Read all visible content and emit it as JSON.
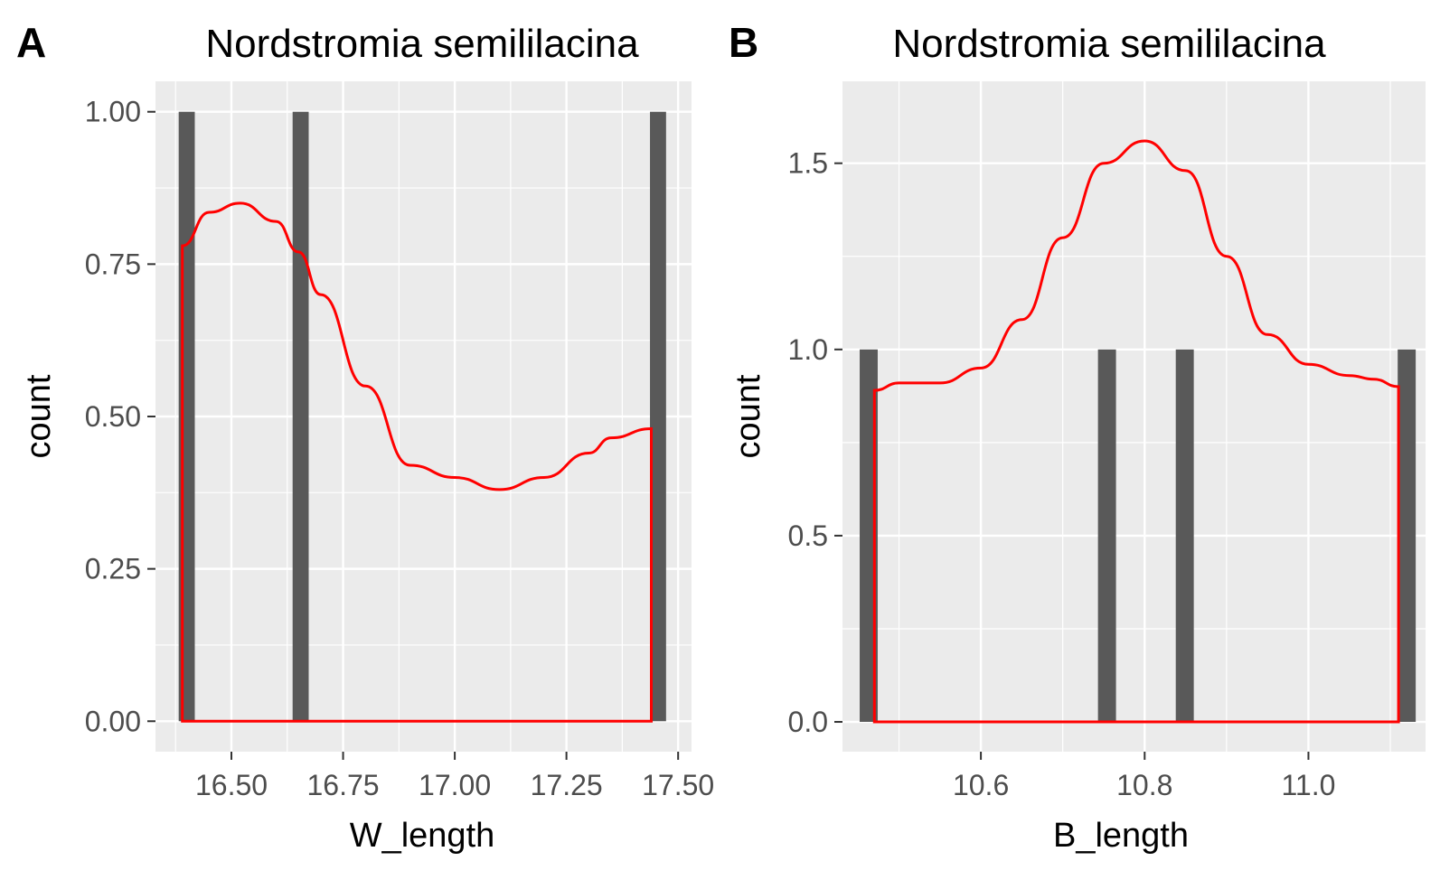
{
  "colors": {
    "panel_background": "#ebebeb",
    "grid": "#ffffff",
    "bar": "#595959",
    "density": "#ff0000",
    "tick": "#333333",
    "tick_label": "#4d4d4d"
  },
  "chart_data": [
    {
      "type": "bar",
      "panel_label": "A",
      "title": "Nordstromia semililacina",
      "xlabel": "W_length",
      "ylabel": "count",
      "xlim": [
        16.33,
        17.53
      ],
      "ylim": [
        -0.05,
        1.05
      ],
      "x_ticks": [
        16.5,
        16.75,
        17.0,
        17.25,
        17.5
      ],
      "x_tick_labels": [
        "16.50",
        "16.75",
        "17.00",
        "17.25",
        "17.50"
      ],
      "y_ticks": [
        0,
        0.25,
        0.5,
        0.75,
        1.0
      ],
      "y_tick_labels": [
        "0.00",
        "0.25",
        "0.50",
        "0.75",
        "1.00"
      ],
      "bar_width": 0.036,
      "bars": [
        {
          "x": 16.4,
          "count": 1
        },
        {
          "x": 16.655,
          "count": 1
        },
        {
          "x": 17.455,
          "count": 1
        }
      ],
      "density_curve": {
        "x": [
          16.39,
          16.45,
          16.52,
          16.6,
          16.65,
          16.7,
          16.8,
          16.9,
          17.0,
          17.1,
          17.2,
          17.3,
          17.35,
          17.44
        ],
        "y": [
          0.78,
          0.835,
          0.85,
          0.82,
          0.77,
          0.7,
          0.55,
          0.42,
          0.4,
          0.38,
          0.4,
          0.44,
          0.465,
          0.48
        ]
      },
      "grid": true,
      "legend": "none"
    },
    {
      "type": "bar",
      "panel_label": "B",
      "title": "Nordstromia semililacina",
      "xlabel": "B_length",
      "ylabel": "count",
      "xlim": [
        10.431,
        11.143
      ],
      "ylim": [
        -0.08,
        1.72
      ],
      "x_ticks": [
        10.6,
        10.8,
        11.0
      ],
      "x_tick_labels": [
        "10.6",
        "10.8",
        "11.0"
      ],
      "y_ticks": [
        0,
        0.5,
        1.0,
        1.5
      ],
      "y_tick_labels": [
        "0.0",
        "0.5",
        "1.0",
        "1.5"
      ],
      "bar_width": 0.022,
      "bars": [
        {
          "x": 10.463,
          "count": 1
        },
        {
          "x": 10.754,
          "count": 1
        },
        {
          "x": 10.849,
          "count": 1
        },
        {
          "x": 11.12,
          "count": 1
        }
      ],
      "density_curve": {
        "x": [
          10.47,
          10.5,
          10.55,
          10.6,
          10.65,
          10.7,
          10.75,
          10.8,
          10.85,
          10.9,
          10.95,
          11.0,
          11.05,
          11.08,
          11.11
        ],
        "y": [
          0.89,
          0.91,
          0.91,
          0.95,
          1.08,
          1.3,
          1.5,
          1.56,
          1.48,
          1.25,
          1.04,
          0.96,
          0.93,
          0.92,
          0.9
        ]
      },
      "grid": true,
      "legend": "none"
    }
  ]
}
